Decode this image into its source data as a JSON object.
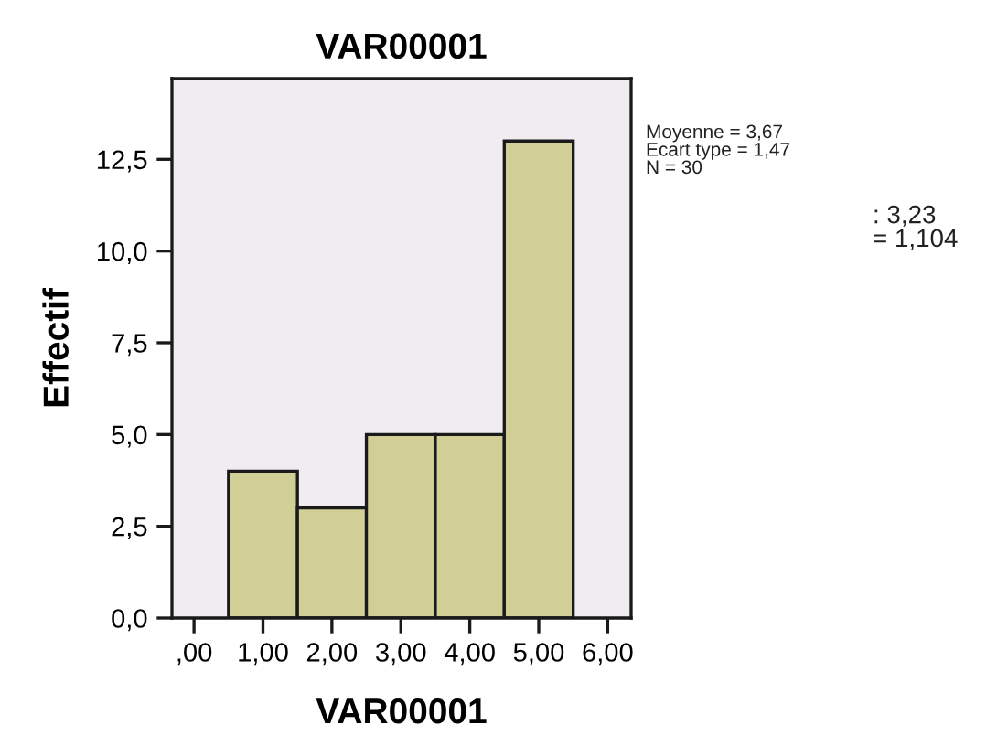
{
  "chart_data": {
    "type": "histogram",
    "title": "VAR00001",
    "xlabel": "VAR00001",
    "ylabel": "Effectif",
    "bins": [
      0.5,
      1.5,
      2.5,
      3.5,
      4.5,
      5.5
    ],
    "values": [
      4,
      3,
      5,
      5,
      13
    ],
    "color": "#d2cf96",
    "xlim": [
      -0.32,
      6.34
    ],
    "xticks": [
      {
        "value": 0,
        "label": ",00"
      },
      {
        "value": 1,
        "label": "1,00"
      },
      {
        "value": 2,
        "label": "2,00"
      },
      {
        "value": 3,
        "label": "3,00"
      },
      {
        "value": 4,
        "label": "4,00"
      },
      {
        "value": 5,
        "label": "5,00"
      },
      {
        "value": 6,
        "label": "6,00"
      }
    ],
    "ylim": [
      0,
      14.7
    ],
    "yticks": [
      {
        "value": 0,
        "label": "0,0"
      },
      {
        "value": 2.5,
        "label": "2,5"
      },
      {
        "value": 5,
        "label": "5,0"
      },
      {
        "value": 7.5,
        "label": "7,5"
      },
      {
        "value": 10,
        "label": "10,0"
      },
      {
        "value": 12.5,
        "label": "12,5"
      }
    ],
    "grid": false,
    "legend": false,
    "annotations": [
      "Moyenne = 3,67\nEcart type = 1,47\nN = 30",
      ": 3,23\n= 1,104"
    ]
  }
}
